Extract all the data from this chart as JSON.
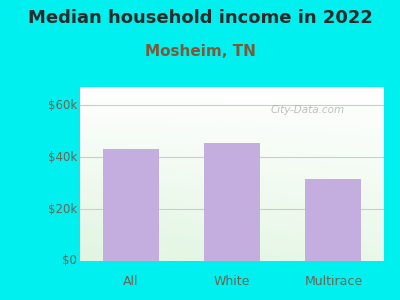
{
  "title": "Median household income in 2022",
  "subtitle": "Mosheim, TN",
  "categories": [
    "All",
    "White",
    "Multirace"
  ],
  "values": [
    43000,
    45500,
    31500
  ],
  "bar_color": "#c4aee0",
  "title_fontsize": 13,
  "subtitle_fontsize": 11,
  "subtitle_color": "#7a5a3a",
  "title_color": "#2a2a2a",
  "outer_bg": "#00f0f0",
  "plot_bg_topleft": "#e8f5e8",
  "plot_bg_topright": "#ffffff",
  "plot_bg_bottomleft": "#d0ecd0",
  "plot_bg_bottomright": "#e8f5e8",
  "yticks": [
    0,
    20000,
    40000,
    60000
  ],
  "ytick_labels": [
    "$0",
    "$20k",
    "$40k",
    "$60k"
  ],
  "ylim": [
    0,
    67000
  ],
  "watermark_text": "City-Data.com",
  "bar_edge_color": "none",
  "grid_color": "#cccccc",
  "tick_label_color": "#666655"
}
